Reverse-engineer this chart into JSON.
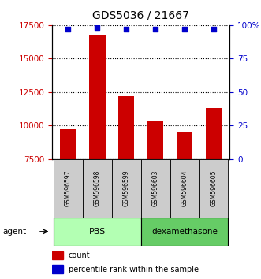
{
  "title": "GDS5036 / 21667",
  "samples": [
    "GSM596597",
    "GSM596598",
    "GSM596599",
    "GSM596603",
    "GSM596604",
    "GSM596605"
  ],
  "counts": [
    9700,
    16800,
    12200,
    10400,
    9500,
    11300
  ],
  "percentile_ranks": [
    97,
    98,
    97,
    97,
    97,
    97
  ],
  "groups": [
    "PBS",
    "PBS",
    "PBS",
    "dexamethasone",
    "dexamethasone",
    "dexamethasone"
  ],
  "group_labels": [
    "PBS",
    "dexamethasone"
  ],
  "pbs_color": "#b3ffb3",
  "dexa_color": "#66cc66",
  "bar_color": "#cc0000",
  "dot_color": "#0000cc",
  "ylim_left": [
    7500,
    17500
  ],
  "ylim_right": [
    0,
    100
  ],
  "yticks_left": [
    7500,
    10000,
    12500,
    15000,
    17500
  ],
  "yticks_right": [
    0,
    25,
    50,
    75,
    100
  ],
  "yticklabels_right": [
    "0",
    "25",
    "50",
    "75",
    "100%"
  ],
  "left_tick_color": "#cc0000",
  "right_tick_color": "#0000cc",
  "agent_label": "agent",
  "legend_count_label": "count",
  "legend_pct_label": "percentile rank within the sample",
  "bar_width": 0.55,
  "sample_cell_color": "#cccccc"
}
